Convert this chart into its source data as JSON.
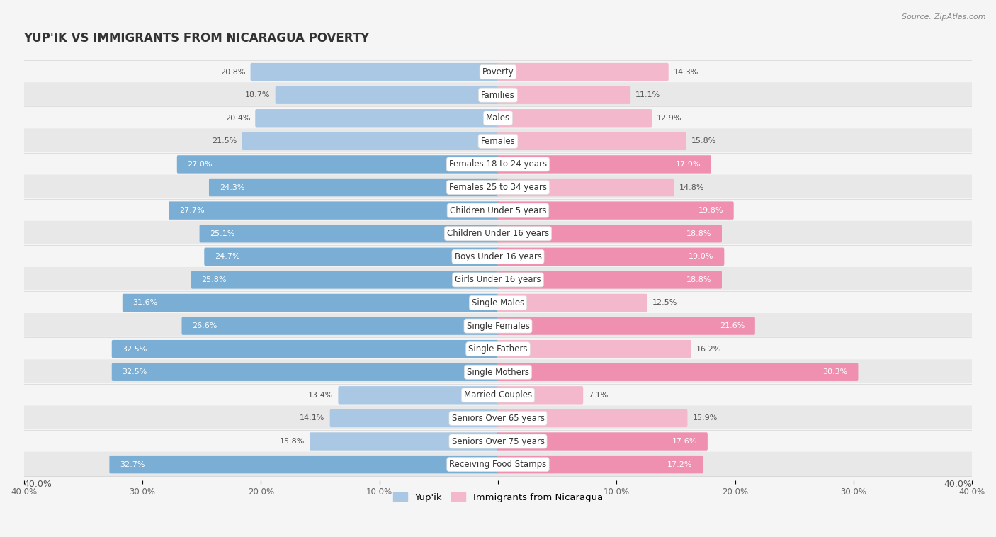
{
  "title": "YUP'IK VS IMMIGRANTS FROM NICARAGUA POVERTY",
  "source": "Source: ZipAtlas.com",
  "categories": [
    "Poverty",
    "Families",
    "Males",
    "Females",
    "Females 18 to 24 years",
    "Females 25 to 34 years",
    "Children Under 5 years",
    "Children Under 16 years",
    "Boys Under 16 years",
    "Girls Under 16 years",
    "Single Males",
    "Single Females",
    "Single Fathers",
    "Single Mothers",
    "Married Couples",
    "Seniors Over 65 years",
    "Seniors Over 75 years",
    "Receiving Food Stamps"
  ],
  "yupik_values": [
    20.8,
    18.7,
    20.4,
    21.5,
    27.0,
    24.3,
    27.7,
    25.1,
    24.7,
    25.8,
    31.6,
    26.6,
    32.5,
    32.5,
    13.4,
    14.1,
    15.8,
    32.7
  ],
  "nicaragua_values": [
    14.3,
    11.1,
    12.9,
    15.8,
    17.9,
    14.8,
    19.8,
    18.8,
    19.0,
    18.8,
    12.5,
    21.6,
    16.2,
    30.3,
    7.1,
    15.9,
    17.6,
    17.2
  ],
  "yupik_color_light": "#aac8e4",
  "yupik_color_dark": "#7aaed4",
  "nicaragua_color_light": "#f4b8cc",
  "nicaragua_color_dark": "#f090b0",
  "bg_dark": "#e8e8e8",
  "bg_light": "#f5f5f5",
  "xlim": 40.0,
  "label_threshold_yupik": 23.0,
  "label_threshold_nicaragua": 17.0,
  "legend_label_yupik": "Yup'ik",
  "legend_label_nicaragua": "Immigrants from Nicaragua",
  "bar_height": 0.62
}
